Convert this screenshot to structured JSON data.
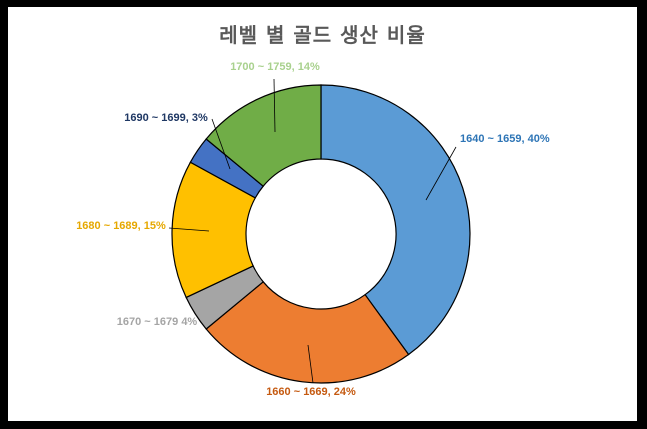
{
  "chart_data": {
    "type": "pie",
    "title": "레벨 별 골드 생산 비율",
    "style": "donut",
    "slices": [
      {
        "category": "1640 ~ 1659",
        "value": 40,
        "label": "1640 ~ 1659, 40%",
        "color": "#5B9BD5",
        "label_color": "#2E75B6"
      },
      {
        "category": "1660 ~ 1669",
        "value": 24,
        "label": "1660 ~ 1669, 24%",
        "color": "#ED7D31",
        "label_color": "#C55A11"
      },
      {
        "category": "1670 ~ 1679",
        "value": 4,
        "label": "1670 ~ 1679 4%",
        "color": "#A5A5A5",
        "label_color": "#A5A5A5"
      },
      {
        "category": "1680 ~ 1689",
        "value": 15,
        "label": "1680 ~ 1689, 15%",
        "color": "#FFC000",
        "label_color": "#E6A800"
      },
      {
        "category": "1690 ~ 1699",
        "value": 3,
        "label": "1690 ~ 1699, 3%",
        "color": "#4472C4",
        "label_color": "#1F3864"
      },
      {
        "category": "1700 ~ 1759",
        "value": 14,
        "label": "1700 ~ 1759, 14%",
        "color": "#70AD47",
        "label_color": "#A9D18E"
      }
    ]
  }
}
